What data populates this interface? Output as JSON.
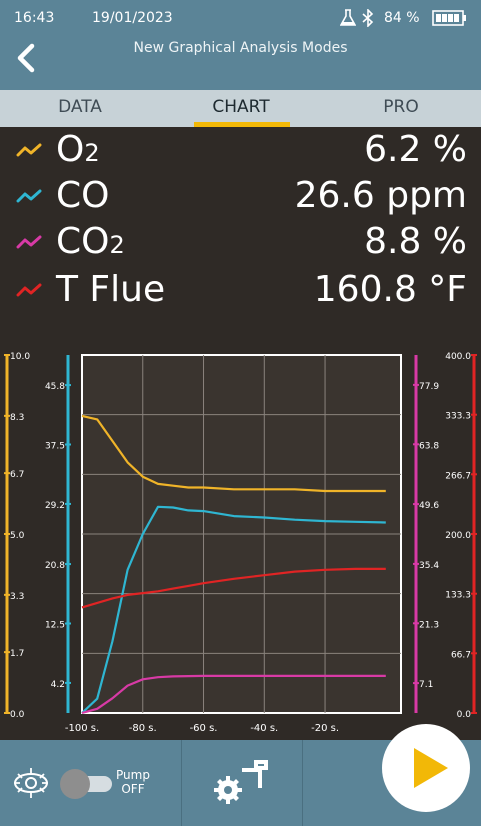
{
  "status": {
    "time": "16:43",
    "date": "19/01/2023",
    "battery": "84 %",
    "flask_icon": "flask-icon",
    "bluetooth_icon": "bluetooth-icon",
    "battery_icon": "battery-icon"
  },
  "header": {
    "title": "New Graphical Analysis Modes"
  },
  "tabs": [
    {
      "label": "DATA"
    },
    {
      "label": "CHART",
      "active": true
    },
    {
      "label": "PRO"
    }
  ],
  "readings": [
    {
      "name_main": "O",
      "name_sub": "2",
      "value": "6.2 %",
      "color": "#f0b429"
    },
    {
      "name_main": "CO",
      "name_sub": "",
      "value": "26.6 ppm",
      "color": "#2fb6d2"
    },
    {
      "name_main": "CO",
      "name_sub": "2",
      "value": "8.8 %",
      "color": "#d83aa6"
    },
    {
      "name_main": "T Flue",
      "name_sub": "",
      "value": "160.8 °F",
      "color": "#e02424"
    }
  ],
  "chart_data": {
    "type": "line",
    "x": [
      -100,
      -95,
      -90,
      -85,
      -80,
      -75,
      -70,
      -65,
      -60,
      -50,
      -40,
      -30,
      -20,
      -10,
      0
    ],
    "x_ticks": [
      "-100 s.",
      "-80 s.",
      "-60 s.",
      "-40 s.",
      "-20 s."
    ],
    "x_tick_values": [
      -100,
      -80,
      -60,
      -40,
      -20
    ],
    "xlim": [
      -100,
      5
    ],
    "axes": [
      {
        "id": "o2",
        "color": "#f0b429",
        "ticks": [
          "10.0",
          "8.3",
          "6.7",
          "5.0",
          "3.3",
          "1.7",
          "0.0"
        ],
        "ylim": [
          0,
          10
        ]
      },
      {
        "id": "co",
        "color": "#2fb6d2",
        "ticks": [
          "45.8",
          "37.5",
          "29.2",
          "20.8",
          "12.5",
          "4.2"
        ],
        "ylim": [
          0,
          50
        ]
      },
      {
        "id": "co2",
        "color": "#d83aa6",
        "ticks": [
          "77.9",
          "63.8",
          "49.6",
          "35.4",
          "21.3",
          "7.1"
        ],
        "ylim": [
          0,
          85
        ]
      },
      {
        "id": "tflue",
        "color": "#e02424",
        "ticks": [
          "400.0",
          "333.3",
          "266.7",
          "200.0",
          "133.3",
          "66.7",
          "0.0"
        ],
        "ylim": [
          0,
          400
        ]
      }
    ],
    "series": [
      {
        "name": "O2",
        "axis": "o2",
        "color": "#f0b429",
        "values": [
          8.3,
          8.2,
          7.6,
          7.0,
          6.6,
          6.4,
          6.35,
          6.3,
          6.3,
          6.25,
          6.25,
          6.25,
          6.2,
          6.2,
          6.2
        ]
      },
      {
        "name": "CO",
        "axis": "co",
        "color": "#2fb6d2",
        "values": [
          0,
          2,
          10,
          20,
          25,
          28.8,
          28.7,
          28.3,
          28.2,
          27.5,
          27.3,
          27.0,
          26.8,
          26.7,
          26.6
        ]
      },
      {
        "name": "CO2",
        "axis": "co2",
        "color": "#d83aa6",
        "values": [
          0,
          1,
          3.5,
          6.5,
          8.0,
          8.5,
          8.7,
          8.75,
          8.8,
          8.8,
          8.8,
          8.8,
          8.8,
          8.8,
          8.8
        ]
      },
      {
        "name": "T Flue",
        "axis": "tflue",
        "color": "#e02424",
        "values": [
          118,
          123,
          128,
          132,
          134,
          136,
          139,
          142,
          145,
          150,
          154,
          158,
          160,
          161,
          161
        ]
      }
    ]
  },
  "bottom": {
    "pump_label_1": "Pump",
    "pump_label_2": "OFF",
    "sun_icon": "burner-icon",
    "settings_icon": "settings-probe-icon",
    "play_icon": "play-icon"
  }
}
